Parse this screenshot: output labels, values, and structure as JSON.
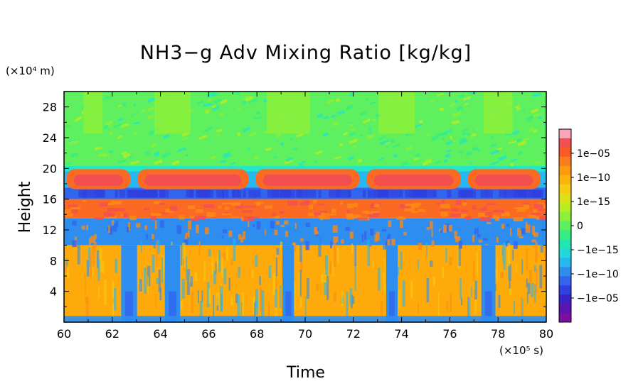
{
  "chart_data": {
    "type": "heatmap",
    "title": "NH3−g Adv Mixing Ratio [kg/kg]",
    "xlabel": "Time",
    "ylabel": "Height",
    "x_unit": "(×10⁵ s)",
    "y_unit": "(×10⁴ m)",
    "xlim": [
      60,
      80
    ],
    "ylim": [
      0,
      30
    ],
    "x_ticks": [
      "60",
      "62",
      "64",
      "66",
      "68",
      "70",
      "72",
      "74",
      "76",
      "78",
      "80"
    ],
    "y_ticks": [
      "4",
      "8",
      "12",
      "16",
      "20",
      "24",
      "28"
    ],
    "colorbar": {
      "labels": [
        "1e−05",
        "1e−10",
        "1e−15",
        "0",
        "−1e−15",
        "−1e−10",
        "−1e−05"
      ],
      "colors": [
        "#f7a6b8",
        "#f25050",
        "#fb5a28",
        "#fb7d1a",
        "#fd9a10",
        "#fdb40a",
        "#f7cc10",
        "#dde018",
        "#b8ee20",
        "#8cf038",
        "#5af060",
        "#35ec85",
        "#22e6b0",
        "#22d8d8",
        "#28b8f0",
        "#2e8ef0",
        "#3265ee",
        "#2f3fe0",
        "#3a22c8",
        "#5a14b0",
        "#7a0fa0"
      ]
    },
    "bands": [
      {
        "name": "upper-green",
        "y_range": [
          20,
          30
        ],
        "value": "~0"
      },
      {
        "name": "red-orange-layer",
        "y_range": [
          17.5,
          20
        ],
        "value": "positive ~1e-10 to 1e-05"
      },
      {
        "name": "blue-layer",
        "y_range": [
          16,
          17.2
        ],
        "value": "negative ~-1e-10 to -1e-05"
      },
      {
        "name": "red-orange-layer-2",
        "y_range": [
          13.5,
          16
        ],
        "value": "positive ~1e-10 to 1e-05"
      },
      {
        "name": "blue-layer-2",
        "y_range": [
          10,
          13.5
        ],
        "value": "negative ~-1e-10"
      },
      {
        "name": "lower-orange",
        "y_range": [
          0,
          10
        ],
        "value": "positive ~1e-10"
      }
    ],
    "lower_negative_columns_x": [
      62.7,
      64.5,
      69.3,
      73.6,
      77.6
    ],
    "upper_gaps_x": [
      62.9,
      67.8,
      72.4,
      76.6
    ],
    "grid": false,
    "legend": "colorbar-right"
  }
}
